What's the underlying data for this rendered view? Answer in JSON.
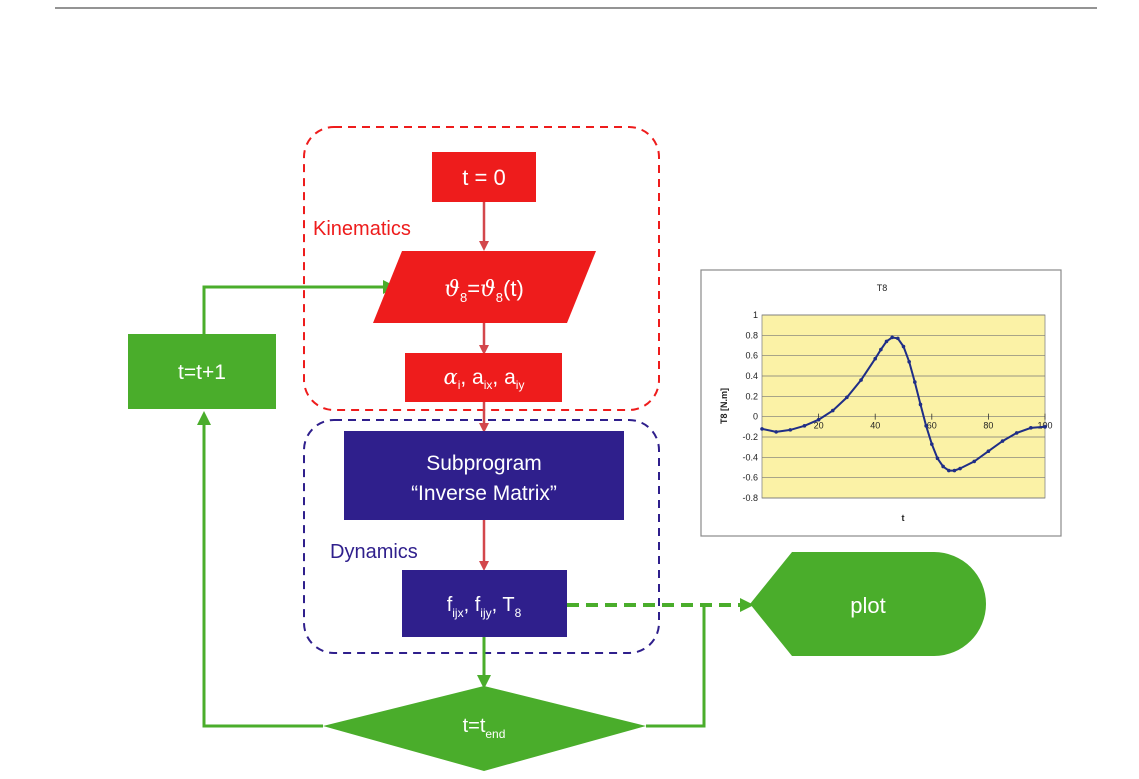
{
  "colors": {
    "kinematics": "#ee1c1c",
    "dynamics": "#2f1f8c",
    "loop": "#4aad2b",
    "plot_bg": "#fbf2a6",
    "curve": "#1f2e87",
    "arrow_red": "#d3474c"
  },
  "diagram": {
    "group_kinematics": "Kinematics",
    "group_dynamics": "Dynamics",
    "start": "t = 0",
    "theta": {
      "lhs": "ϑ",
      "lhs_sub": "8",
      "eq": "=",
      "rhs": "ϑ",
      "rhs_sub": "8",
      "rhs_tail": "(t)"
    },
    "accel": {
      "alpha": "α",
      "alpha_sub": "i",
      "sep1": ", a",
      "ax_sub": "ix",
      "sep2": ", a",
      "ay_sub": "iy"
    },
    "subprogram": {
      "line1": "Subprogram",
      "line2": "“Inverse Matrix”"
    },
    "forces": {
      "f1": "f",
      "f1_sub": "ijx",
      "sep1": ", f",
      "f2_sub": "ijy",
      "sep2": ", T",
      "t_sub": "8"
    },
    "increment": "t=t+1",
    "decision": {
      "text": "t=t",
      "sub": "end"
    },
    "output": "plot"
  },
  "chart_data": {
    "type": "line",
    "title": "T8",
    "xlabel": "t",
    "ylabel": "T8 [N.m]",
    "xlim": [
      0,
      100
    ],
    "ylim": [
      -0.8,
      1
    ],
    "x_ticks": [
      "20",
      "40",
      "60",
      "80",
      "100"
    ],
    "y_ticks": [
      "1",
      "0.8",
      "0.6",
      "0.4",
      "0.2",
      "0",
      "-0.2",
      "-0.4",
      "-0.6",
      "-0.8"
    ],
    "grid": true,
    "series": [
      {
        "x": [
          0,
          5,
          10,
          15,
          20,
          25,
          30,
          35,
          40,
          42,
          44,
          46,
          48,
          50,
          52,
          54,
          56,
          58,
          60,
          62,
          64,
          66,
          68,
          70,
          75,
          80,
          85,
          90,
          95,
          100
        ],
        "y": [
          -0.12,
          -0.15,
          -0.13,
          -0.09,
          -0.03,
          0.06,
          0.19,
          0.36,
          0.57,
          0.66,
          0.74,
          0.78,
          0.77,
          0.69,
          0.54,
          0.34,
          0.12,
          -0.09,
          -0.27,
          -0.41,
          -0.49,
          -0.53,
          -0.53,
          -0.51,
          -0.44,
          -0.34,
          -0.24,
          -0.16,
          -0.11,
          -0.1
        ]
      }
    ]
  }
}
